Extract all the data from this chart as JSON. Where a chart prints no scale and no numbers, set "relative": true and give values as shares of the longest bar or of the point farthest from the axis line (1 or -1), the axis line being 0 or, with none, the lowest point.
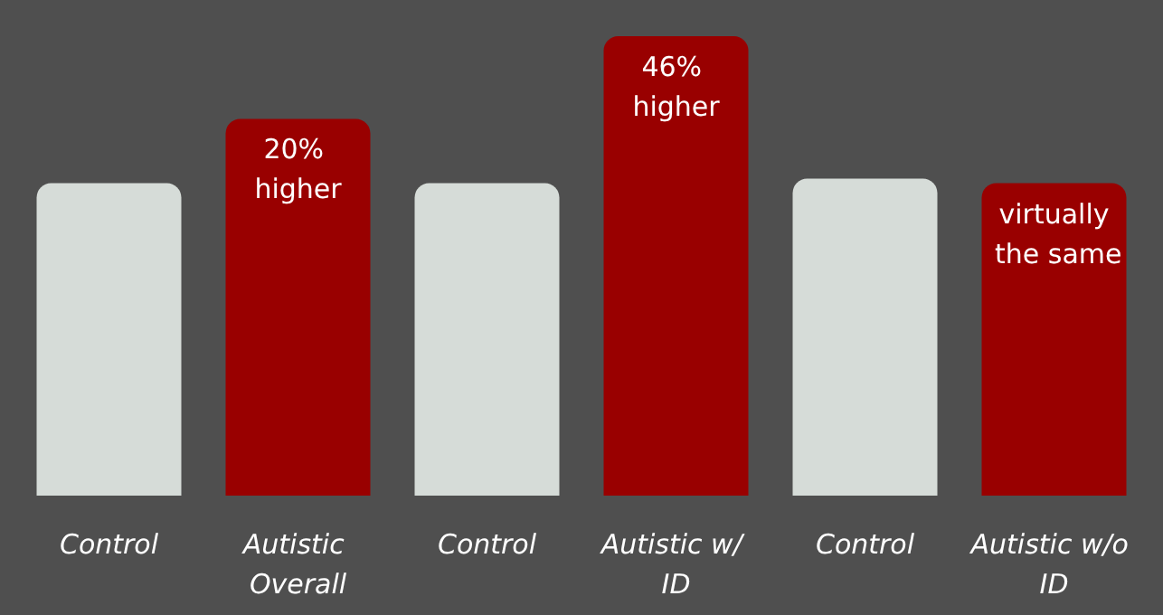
{
  "chart_data": {
    "type": "bar",
    "relative": true,
    "categories": [
      "Control",
      "Autistic Overall",
      "Control",
      "Autistic w/ ID",
      "Control",
      "Autistic w/o ID"
    ],
    "values": [
      0.68,
      0.82,
      0.68,
      1,
      0.69,
      0.68
    ],
    "colors": [
      "#d6dcd8",
      "#990000",
      "#d6dcd8",
      "#990000",
      "#d6dcd8",
      "#990000"
    ],
    "annotations": [
      {
        "text": "20% higher",
        "x": "Autistic Overall",
        "y": 0.82
      },
      {
        "text": "46% higher",
        "x": "Autistic w/ ID",
        "y": 1
      },
      {
        "text": "virtually the same",
        "x": "Autistic w/o ID",
        "y": 0.68
      }
    ]
  }
}
